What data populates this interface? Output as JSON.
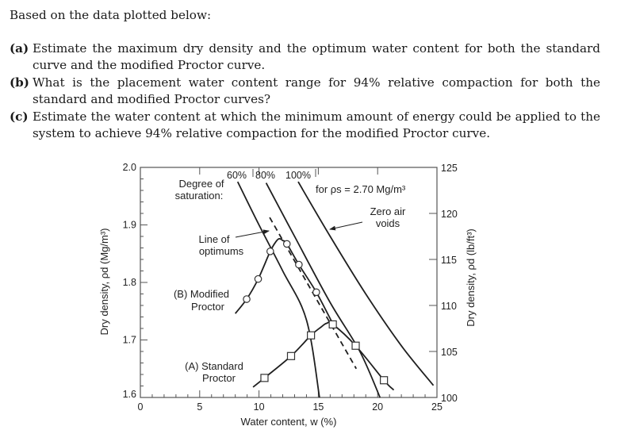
{
  "question": {
    "intro": "Based on the data plotted below:",
    "items": [
      {
        "tag": "(a)",
        "lines": [
          "Estimate the maximum dry density and the optimum water content for both the standard",
          "curve and the modified Proctor curve."
        ]
      },
      {
        "tag": "(b)",
        "lines": [
          "What is the placement water content range for 94% relative compaction for both the",
          "standard and modified Proctor curves?"
        ]
      },
      {
        "tag": "(c)",
        "lines": [
          "Estimate the water content at which the minimum amount of energy could be applied to the",
          "system to achieve 94% relative compaction for the modified Proctor curve."
        ]
      }
    ]
  },
  "chart_data": {
    "type": "line",
    "title": "",
    "xlabel": "Water content, w (%)",
    "ylabel": "Dry density, ρd (Mg/m³)",
    "ylabel_right": "Dry density, ρd (lb/ft³)",
    "xlim": [
      0,
      25
    ],
    "ylim": [
      1.6,
      2.0
    ],
    "ylim_right": [
      100,
      125
    ],
    "x_ticks": [
      0,
      5,
      10,
      15,
      20,
      25
    ],
    "y_ticks": [
      "1.6",
      "1.7",
      "1.8",
      "1.9",
      "2.0"
    ],
    "y_ticks_right": [
      "100",
      "105",
      "110",
      "115",
      "120",
      "125"
    ],
    "grid": false,
    "series": [
      {
        "name": "(B) Modified Proctor",
        "marker": "circle",
        "points": [
          [
            8.96,
            1.771
          ],
          [
            9.93,
            1.806
          ],
          [
            10.95,
            1.854
          ],
          [
            12.35,
            1.867
          ],
          [
            13.36,
            1.831
          ],
          [
            14.83,
            1.783
          ]
        ],
        "curve": [
          [
            8.0,
            1.746
          ],
          [
            8.96,
            1.771
          ],
          [
            9.93,
            1.806
          ],
          [
            10.95,
            1.854
          ],
          [
            11.4,
            1.87
          ],
          [
            11.7,
            1.876
          ],
          [
            12.0,
            1.873
          ],
          [
            12.35,
            1.867
          ],
          [
            13.36,
            1.831
          ],
          [
            14.83,
            1.783
          ],
          [
            16.2,
            1.729
          ]
        ]
      },
      {
        "name": "(A) Standard Proctor",
        "marker": "square",
        "points": [
          [
            10.46,
            1.634
          ],
          [
            12.7,
            1.672
          ],
          [
            14.38,
            1.708
          ],
          [
            16.22,
            1.727
          ],
          [
            18.15,
            1.69
          ],
          [
            20.53,
            1.63
          ]
        ],
        "curve": [
          [
            9.5,
            1.618
          ],
          [
            10.46,
            1.634
          ],
          [
            12.7,
            1.672
          ],
          [
            14.38,
            1.708
          ],
          [
            15.2,
            1.722
          ],
          [
            15.7,
            1.729
          ],
          [
            16.22,
            1.727
          ],
          [
            18.15,
            1.69
          ],
          [
            20.53,
            1.63
          ],
          [
            21.36,
            1.613
          ]
        ]
      }
    ],
    "saturation_lines": [
      {
        "label": "60%",
        "S": 0.6,
        "points": [
          [
            8.2,
            1.975
          ],
          [
            10.0,
            1.9
          ],
          [
            12.0,
            1.82
          ],
          [
            14.0,
            1.735
          ],
          [
            15.1,
            1.6
          ]
        ]
      },
      {
        "label": "80%",
        "S": 0.8,
        "points": [
          [
            10.6,
            1.973
          ],
          [
            13.0,
            1.88
          ],
          [
            16.0,
            1.765
          ],
          [
            18.5,
            1.68
          ],
          [
            20.2,
            1.6
          ]
        ]
      },
      {
        "label": "100%",
        "S": 1.0,
        "points": [
          [
            13.3,
            1.975
          ],
          [
            16.0,
            1.88
          ],
          [
            19.0,
            1.78
          ],
          [
            22.0,
            1.69
          ],
          [
            24.7,
            1.621
          ]
        ]
      }
    ],
    "line_of_optimums": [
      [
        10.9,
        1.913
      ],
      [
        18.2,
        1.65
      ]
    ],
    "annotations": {
      "degree_of_saturation": [
        "Degree of",
        "saturation:"
      ],
      "specific_gravity": "for ρs = 2.70 Mg/m³",
      "zero_air_voids": [
        "Zero air",
        "voids"
      ],
      "line_of_optimums": [
        "Line of",
        "optimums"
      ],
      "modified_label": [
        "(B) Modified",
        "Proctor"
      ],
      "standard_label": [
        "(A) Standard",
        "Proctor"
      ]
    }
  }
}
